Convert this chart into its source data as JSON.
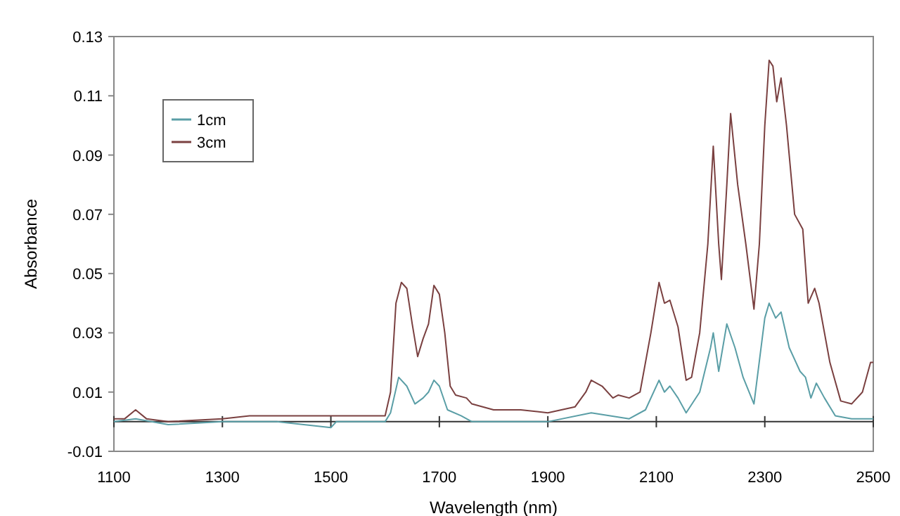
{
  "chart_data": {
    "type": "line",
    "xlabel": "Wavelength (nm)",
    "ylabel": "Absorbance",
    "xlim": [
      1100,
      2500
    ],
    "xticks": [
      1100,
      1300,
      1500,
      1700,
      1900,
      2100,
      2300,
      2500
    ],
    "ylim": [
      -0.01,
      0.13
    ],
    "yticks": [
      -0.01,
      0.01,
      0.03,
      0.05,
      0.07,
      0.09,
      0.11,
      0.13
    ],
    "grid": false,
    "legend": "top left",
    "marker": "none",
    "line_style": "solid",
    "ref_lines": [
      {
        "axis": "y",
        "value": 0
      }
    ],
    "series": [
      {
        "name": "1cm",
        "color": "#5a9ea6",
        "x": [
          1100,
          1140,
          1200,
          1300,
          1400,
          1500,
          1510,
          1600,
          1610,
          1625,
          1640,
          1655,
          1670,
          1680,
          1690,
          1700,
          1715,
          1740,
          1760,
          1900,
          1980,
          2050,
          2080,
          2105,
          2115,
          2125,
          2140,
          2155,
          2180,
          2200,
          2205,
          2215,
          2230,
          2245,
          2260,
          2280,
          2300,
          2308,
          2320,
          2330,
          2345,
          2365,
          2375,
          2385,
          2395,
          2410,
          2430,
          2460,
          2500
        ],
        "values": [
          0.0,
          0.001,
          -0.001,
          0.0,
          0.0,
          -0.002,
          0.0,
          0.0,
          0.003,
          0.015,
          0.012,
          0.006,
          0.008,
          0.01,
          0.014,
          0.012,
          0.004,
          0.002,
          0.0,
          0.0,
          0.003,
          0.001,
          0.004,
          0.014,
          0.01,
          0.012,
          0.008,
          0.003,
          0.01,
          0.025,
          0.03,
          0.017,
          0.033,
          0.025,
          0.015,
          0.006,
          0.035,
          0.04,
          0.035,
          0.037,
          0.025,
          0.017,
          0.015,
          0.008,
          0.013,
          0.008,
          0.002,
          0.001,
          0.001
        ]
      },
      {
        "name": "3cm",
        "color": "#7a4040",
        "x": [
          1100,
          1120,
          1140,
          1160,
          1200,
          1300,
          1350,
          1400,
          1450,
          1500,
          1550,
          1600,
          1610,
          1620,
          1630,
          1640,
          1650,
          1660,
          1670,
          1680,
          1690,
          1700,
          1710,
          1720,
          1730,
          1750,
          1760,
          1800,
          1850,
          1900,
          1950,
          1970,
          1980,
          2000,
          2020,
          2030,
          2050,
          2070,
          2090,
          2105,
          2115,
          2125,
          2140,
          2155,
          2165,
          2180,
          2195,
          2205,
          2215,
          2220,
          2230,
          2237,
          2250,
          2265,
          2280,
          2290,
          2300,
          2308,
          2315,
          2322,
          2330,
          2340,
          2355,
          2370,
          2380,
          2392,
          2400,
          2420,
          2440,
          2460,
          2480,
          2495,
          2500
        ],
        "values": [
          0.001,
          0.001,
          0.004,
          0.001,
          0.0,
          0.001,
          0.002,
          0.002,
          0.002,
          0.002,
          0.002,
          0.002,
          0.01,
          0.04,
          0.047,
          0.045,
          0.033,
          0.022,
          0.028,
          0.033,
          0.046,
          0.043,
          0.03,
          0.012,
          0.009,
          0.008,
          0.006,
          0.004,
          0.004,
          0.003,
          0.005,
          0.01,
          0.014,
          0.012,
          0.008,
          0.009,
          0.008,
          0.01,
          0.03,
          0.047,
          0.04,
          0.041,
          0.032,
          0.014,
          0.015,
          0.03,
          0.06,
          0.093,
          0.06,
          0.048,
          0.08,
          0.104,
          0.08,
          0.06,
          0.038,
          0.06,
          0.1,
          0.122,
          0.12,
          0.108,
          0.116,
          0.1,
          0.07,
          0.065,
          0.04,
          0.045,
          0.04,
          0.02,
          0.007,
          0.006,
          0.01,
          0.02,
          0.02
        ]
      }
    ]
  }
}
